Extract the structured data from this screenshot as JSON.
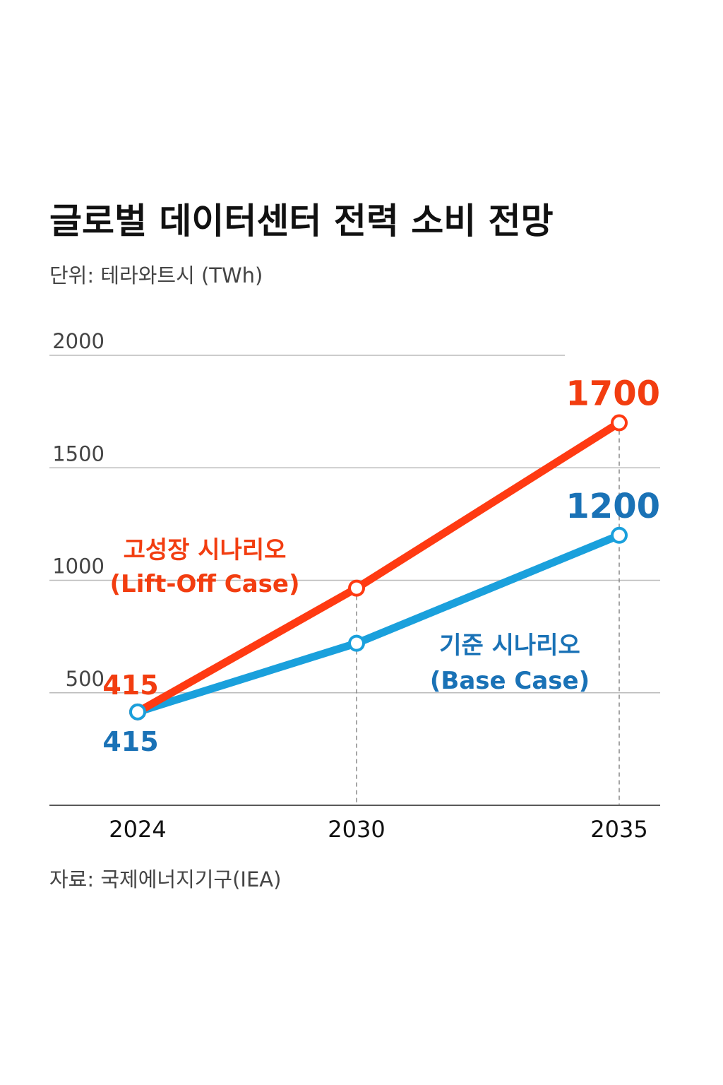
{
  "chart_data": {
    "type": "line",
    "title": "글로벌 데이터센터 전력 소비 전망",
    "subtitle": "단위: 테라와트시 (TWh)",
    "source": "자료: 국제에너지기구(IEA)",
    "categories": [
      "2024",
      "2030",
      "2035"
    ],
    "series": [
      {
        "name": "고성장 시나리오",
        "name_en": "(Lift-Off Case)",
        "color": "#ff3a12",
        "label_color": "#f23d10",
        "values": [
          415,
          965,
          1700
        ],
        "value_labels": [
          "415",
          null,
          "1700"
        ]
      },
      {
        "name": "기준 시나리오",
        "name_en": "(Base Case)",
        "color": "#1aa0dc",
        "label_color": "#1a72b6",
        "values": [
          415,
          720,
          1200
        ],
        "value_labels": [
          "415",
          null,
          "1200"
        ]
      }
    ],
    "ylim": [
      0,
      2000
    ],
    "yticks": [
      500,
      1000,
      1500,
      2000
    ],
    "grid": true
  }
}
